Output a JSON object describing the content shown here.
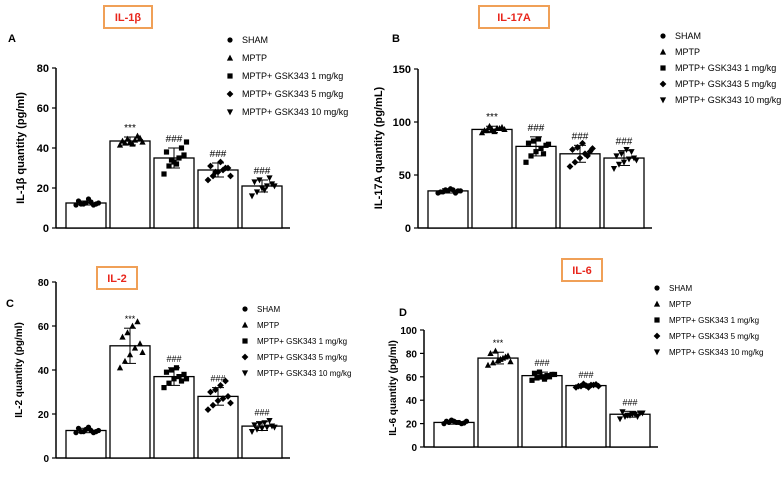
{
  "legend_labels": [
    "SHAM",
    "MPTP",
    "MPTP+ GSK343 1 mg/kg",
    "MPTP+ GSK343 5 mg/kg",
    "MPTP+ GSK343 10 mg/kg"
  ],
  "colors": {
    "title_text": "#e8261c",
    "title_border": "#f0a057",
    "ink": "#000000",
    "bar_fill": "#ffffff"
  },
  "chart_data": [
    {
      "panel": "A",
      "type": "bar",
      "title": "IL-1β",
      "ylabel": "IL-1β quantity (pg/ml)",
      "xlabel": "",
      "ylim": [
        0,
        80
      ],
      "yticks": [
        "0",
        "20",
        "40",
        "60",
        "80"
      ],
      "categories": [
        "SHAM",
        "MPTP",
        "MPTP+ GSK343 1 mg/kg",
        "MPTP+ GSK343 5 mg/kg",
        "MPTP+ GSK343 10 mg/kg"
      ],
      "values": [
        12.5,
        43.5,
        35,
        29,
        21
      ],
      "errors": [
        1,
        2,
        5,
        3.5,
        3
      ],
      "markers": [
        "circle",
        "triangle-up",
        "square",
        "diamond",
        "triangle-down"
      ],
      "points": [
        [
          11.5,
          12,
          12.5,
          13,
          12,
          13.5,
          12,
          14.5,
          11.5,
          12.5
        ],
        [
          41.5,
          42.5,
          43,
          44,
          45,
          43.5,
          44.5,
          42,
          46,
          43
        ],
        [
          27,
          31,
          33,
          35,
          36.5,
          38,
          34,
          32,
          40,
          43
        ],
        [
          24,
          26,
          28,
          29,
          30,
          31,
          28,
          33,
          30,
          26
        ],
        [
          16,
          18,
          20,
          21,
          22,
          23,
          24,
          19,
          25,
          21
        ]
      ],
      "annotations": [
        "***",
        "###",
        "###",
        "###"
      ],
      "legend_position": "top-right"
    },
    {
      "panel": "B",
      "type": "bar",
      "title": "IL-17A",
      "ylabel": "IL-17A quantity (pg/mL)",
      "xlabel": "",
      "ylim": [
        0,
        150
      ],
      "yticks": [
        "0",
        "50",
        "100",
        "150"
      ],
      "categories": [
        "SHAM",
        "MPTP",
        "MPTP+ GSK343 1 mg/kg",
        "MPTP+ GSK343 5 mg/kg",
        "MPTP+ GSK343 10 mg/kg"
      ],
      "values": [
        35,
        93,
        77,
        70,
        66
      ],
      "errors": [
        2,
        3,
        9,
        8,
        7
      ],
      "markers": [
        "circle",
        "triangle-up",
        "square",
        "diamond",
        "triangle-down"
      ],
      "points": [
        [
          33,
          34,
          35,
          36,
          35,
          34,
          36,
          37,
          33,
          35
        ],
        [
          90,
          92,
          93,
          94,
          95,
          92,
          96,
          91,
          94,
          93
        ],
        [
          62,
          68,
          72,
          75,
          78,
          80,
          82,
          84,
          70,
          79
        ],
        [
          58,
          62,
          66,
          70,
          72,
          74,
          76,
          80,
          68,
          75
        ],
        [
          56,
          60,
          62,
          65,
          66,
          68,
          70,
          74,
          72,
          64
        ]
      ],
      "annotations": [
        "***",
        "###",
        "###",
        "###"
      ],
      "legend_position": "top-right"
    },
    {
      "panel": "C",
      "type": "bar",
      "title": "IL-2",
      "ylabel": "IL-2 quantity (pg/ml)",
      "xlabel": "",
      "ylim": [
        0,
        80
      ],
      "yticks": [
        "0",
        "20",
        "40",
        "60",
        "80"
      ],
      "categories": [
        "SHAM",
        "MPTP",
        "MPTP+ GSK343 1 mg/kg",
        "MPTP+ GSK343 5 mg/kg",
        "MPTP+ GSK343 10 mg/kg"
      ],
      "values": [
        12.5,
        51,
        37,
        28,
        14.5
      ],
      "errors": [
        1,
        8,
        4,
        4,
        2
      ],
      "markers": [
        "circle",
        "triangle-up",
        "square",
        "diamond",
        "triangle-down"
      ],
      "points": [
        [
          11.5,
          12,
          13,
          12.5,
          12,
          13.5,
          12,
          14,
          11.5,
          12.5
        ],
        [
          41,
          44,
          47,
          50,
          52,
          55,
          57,
          60,
          62,
          48
        ],
        [
          32,
          34,
          36,
          37,
          38,
          39,
          40,
          41,
          35,
          36
        ],
        [
          22,
          24,
          26,
          27,
          28,
          30,
          31,
          33,
          35,
          25
        ],
        [
          12,
          13,
          13.5,
          14,
          14.5,
          15,
          15.5,
          16,
          17,
          14
        ]
      ],
      "annotations": [
        "***",
        "###",
        "###",
        "###"
      ],
      "legend_position": "top-right"
    },
    {
      "panel": "D",
      "type": "bar",
      "title": "IL-6",
      "ylabel": "IL-6 quantity (pg/ml)",
      "xlabel": "",
      "ylim": [
        0,
        100
      ],
      "yticks": [
        "0",
        "20",
        "40",
        "60",
        "80",
        "100"
      ],
      "categories": [
        "SHAM",
        "MPTP",
        "MPTP+ GSK343 1 mg/kg",
        "MPTP+ GSK343 5 mg/kg",
        "MPTP+ GSK343 10 mg/kg"
      ],
      "values": [
        21,
        76,
        61,
        52.5,
        28
      ],
      "errors": [
        1.5,
        5,
        3,
        1.5,
        2.5
      ],
      "markers": [
        "circle",
        "triangle-up",
        "square",
        "diamond",
        "triangle-down"
      ],
      "points": [
        [
          20,
          21,
          22,
          21,
          20.5,
          22,
          23,
          21,
          20,
          22
        ],
        [
          70,
          72,
          74,
          76,
          78,
          80,
          82,
          75,
          77,
          73
        ],
        [
          57,
          59,
          60,
          61,
          62,
          63,
          64,
          58,
          60,
          62
        ],
        [
          51,
          52,
          52.5,
          53,
          53.5,
          52,
          54,
          51,
          53,
          52
        ],
        [
          24,
          26,
          27,
          28,
          29,
          30,
          27,
          28,
          26,
          29
        ]
      ],
      "annotations": [
        "***",
        "###",
        "###",
        "###"
      ],
      "legend_position": "top-right"
    }
  ]
}
